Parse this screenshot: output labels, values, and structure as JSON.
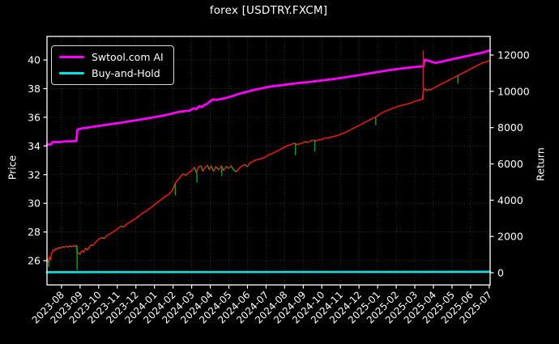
{
  "title": "forex [USDTRY.FXCM]",
  "axes": {
    "left_label": "Price",
    "right_label": "Return"
  },
  "legend": {
    "items": [
      {
        "label": "Swtool.com AI",
        "color": "#ff00ff"
      },
      {
        "label": "Buy-and-Hold",
        "color": "#00e6e6"
      }
    ]
  },
  "colors": {
    "background": "#000000",
    "text": "#ffffff",
    "spine": "#ffffff",
    "grid": "#3a3a3a",
    "price_up": "#e41a10",
    "price_down": "#15a315",
    "ai_line": "#ff00ff",
    "buyhold_line": "#00e6e6"
  },
  "chart_data": {
    "type": "line",
    "title": "forex [USDTRY.FXCM]",
    "x_tick_labels": [
      "2023-08",
      "2023-09",
      "2023-10",
      "2023-11",
      "2023-12",
      "2024-01",
      "2024-02",
      "2024-03",
      "2024-04",
      "2024-05",
      "2024-06",
      "2024-07",
      "2024-08",
      "2024-09",
      "2024-10",
      "2024-11",
      "2024-12",
      "2025-01",
      "2025-02",
      "2025-03",
      "2025-04",
      "2025-05",
      "2025-06",
      "2025-07"
    ],
    "x_range": [
      -0.78,
      23.05
    ],
    "left_axis": {
      "label": "Price",
      "ticks": [
        26,
        28,
        30,
        32,
        34,
        36,
        38,
        40
      ],
      "range": [
        24.31,
        41.64
      ]
    },
    "right_axis": {
      "label": "Return",
      "ticks": [
        0,
        2000,
        4000,
        6000,
        8000,
        10000,
        12000
      ],
      "range": [
        -669,
        13026
      ]
    },
    "grid": {
      "vertical": true,
      "horizontal": true,
      "style": "dotted"
    },
    "legend_position": "upper-left",
    "series": [
      {
        "name": "USDTRY price",
        "axis": "left",
        "style": "updown-segments",
        "up_color": "#e41a10",
        "down_color": "#15a315",
        "width": 1.6,
        "points": [
          [
            -0.78,
            26.1
          ],
          [
            -0.72,
            25.9
          ],
          [
            -0.66,
            26.25
          ],
          [
            -0.6,
            26.05
          ],
          [
            -0.52,
            26.55
          ],
          [
            -0.45,
            26.75
          ],
          [
            -0.38,
            26.7
          ],
          [
            -0.3,
            26.85
          ],
          [
            -0.22,
            26.8
          ],
          [
            -0.15,
            26.92
          ],
          [
            -0.05,
            26.88
          ],
          [
            0.05,
            26.97
          ],
          [
            0.15,
            26.93
          ],
          [
            0.25,
            27.0
          ],
          [
            0.35,
            26.96
          ],
          [
            0.45,
            27.02
          ],
          [
            0.55,
            26.98
          ],
          [
            0.65,
            27.04
          ],
          [
            0.75,
            27.0
          ],
          [
            0.82,
            27.06
          ],
          [
            0.84,
            26.5
          ],
          [
            0.9,
            26.55
          ],
          [
            1.0,
            26.45
          ],
          [
            1.1,
            26.7
          ],
          [
            1.2,
            26.6
          ],
          [
            1.3,
            26.85
          ],
          [
            1.4,
            26.75
          ],
          [
            1.5,
            26.95
          ],
          [
            1.6,
            27.1
          ],
          [
            1.7,
            27.05
          ],
          [
            1.8,
            27.25
          ],
          [
            1.9,
            27.35
          ],
          [
            2.0,
            27.5
          ],
          [
            2.15,
            27.6
          ],
          [
            2.3,
            27.55
          ],
          [
            2.45,
            27.75
          ],
          [
            2.6,
            27.85
          ],
          [
            2.75,
            28.0
          ],
          [
            2.9,
            28.1
          ],
          [
            3.05,
            28.25
          ],
          [
            3.2,
            28.4
          ],
          [
            3.35,
            28.35
          ],
          [
            3.5,
            28.55
          ],
          [
            3.65,
            28.65
          ],
          [
            3.8,
            28.8
          ],
          [
            3.95,
            28.9
          ],
          [
            4.1,
            29.05
          ],
          [
            4.25,
            29.2
          ],
          [
            4.4,
            29.35
          ],
          [
            4.55,
            29.45
          ],
          [
            4.7,
            29.6
          ],
          [
            4.85,
            29.75
          ],
          [
            5.0,
            29.9
          ],
          [
            5.15,
            30.05
          ],
          [
            5.3,
            30.2
          ],
          [
            5.45,
            30.35
          ],
          [
            5.6,
            30.5
          ],
          [
            5.75,
            30.6
          ],
          [
            5.9,
            30.8
          ],
          [
            6.0,
            31.0
          ],
          [
            6.1,
            31.35
          ],
          [
            6.2,
            31.55
          ],
          [
            6.3,
            31.7
          ],
          [
            6.42,
            31.9
          ],
          [
            6.55,
            32.05
          ],
          [
            6.68,
            31.95
          ],
          [
            6.8,
            32.1
          ],
          [
            6.92,
            32.2
          ],
          [
            7.05,
            32.35
          ],
          [
            7.15,
            32.5
          ],
          [
            7.25,
            32.15
          ],
          [
            7.38,
            32.55
          ],
          [
            7.5,
            32.6
          ],
          [
            7.6,
            32.25
          ],
          [
            7.72,
            32.5
          ],
          [
            7.85,
            32.65
          ],
          [
            7.95,
            32.35
          ],
          [
            8.05,
            32.6
          ],
          [
            8.18,
            32.25
          ],
          [
            8.3,
            32.55
          ],
          [
            8.45,
            32.35
          ],
          [
            8.6,
            32.6
          ],
          [
            8.72,
            32.3
          ],
          [
            8.85,
            32.55
          ],
          [
            9.0,
            32.45
          ],
          [
            9.12,
            32.6
          ],
          [
            9.25,
            32.35
          ],
          [
            9.4,
            32.2
          ],
          [
            9.55,
            32.45
          ],
          [
            9.7,
            32.6
          ],
          [
            9.85,
            32.7
          ],
          [
            10.0,
            32.55
          ],
          [
            10.12,
            32.8
          ],
          [
            10.25,
            32.9
          ],
          [
            10.4,
            33.0
          ],
          [
            10.55,
            33.05
          ],
          [
            10.7,
            33.1
          ],
          [
            10.85,
            33.15
          ],
          [
            11.0,
            33.25
          ],
          [
            11.15,
            33.4
          ],
          [
            11.3,
            33.45
          ],
          [
            11.45,
            33.55
          ],
          [
            11.6,
            33.65
          ],
          [
            11.75,
            33.75
          ],
          [
            11.9,
            33.85
          ],
          [
            12.05,
            33.95
          ],
          [
            12.2,
            34.05
          ],
          [
            12.35,
            34.1
          ],
          [
            12.5,
            34.2
          ],
          [
            12.65,
            34.1
          ],
          [
            12.8,
            34.15
          ],
          [
            12.95,
            34.2
          ],
          [
            13.1,
            34.3
          ],
          [
            13.25,
            34.25
          ],
          [
            13.4,
            34.35
          ],
          [
            13.55,
            34.4
          ],
          [
            13.7,
            34.35
          ],
          [
            13.85,
            34.45
          ],
          [
            14.0,
            34.45
          ],
          [
            14.15,
            34.55
          ],
          [
            14.3,
            34.55
          ],
          [
            14.45,
            34.6
          ],
          [
            14.6,
            34.65
          ],
          [
            14.75,
            34.7
          ],
          [
            14.9,
            34.75
          ],
          [
            15.05,
            34.85
          ],
          [
            15.2,
            34.9
          ],
          [
            15.35,
            35.0
          ],
          [
            15.5,
            35.1
          ],
          [
            15.65,
            35.2
          ],
          [
            15.8,
            35.3
          ],
          [
            15.95,
            35.4
          ],
          [
            16.1,
            35.5
          ],
          [
            16.25,
            35.6
          ],
          [
            16.4,
            35.7
          ],
          [
            16.55,
            35.8
          ],
          [
            16.7,
            35.9
          ],
          [
            16.85,
            36.0
          ],
          [
            17.0,
            36.1
          ],
          [
            17.15,
            36.25
          ],
          [
            17.3,
            36.35
          ],
          [
            17.45,
            36.45
          ],
          [
            17.6,
            36.5
          ],
          [
            17.75,
            36.6
          ],
          [
            17.9,
            36.65
          ],
          [
            18.05,
            36.75
          ],
          [
            18.2,
            36.8
          ],
          [
            18.35,
            36.85
          ],
          [
            18.5,
            36.9
          ],
          [
            18.65,
            36.95
          ],
          [
            18.8,
            37.0
          ],
          [
            18.95,
            37.1
          ],
          [
            19.1,
            37.15
          ],
          [
            19.25,
            37.2
          ],
          [
            19.4,
            37.25
          ],
          [
            19.48,
            37.9
          ],
          [
            19.55,
            38.0
          ],
          [
            19.65,
            37.85
          ],
          [
            19.75,
            37.95
          ],
          [
            19.85,
            37.9
          ],
          [
            19.95,
            38.0
          ],
          [
            20.1,
            38.1
          ],
          [
            20.25,
            38.2
          ],
          [
            20.4,
            38.3
          ],
          [
            20.55,
            38.4
          ],
          [
            20.7,
            38.5
          ],
          [
            20.85,
            38.6
          ],
          [
            21.0,
            38.7
          ],
          [
            21.15,
            38.8
          ],
          [
            21.3,
            38.9
          ],
          [
            21.45,
            39.0
          ],
          [
            21.6,
            39.1
          ],
          [
            21.75,
            39.2
          ],
          [
            21.9,
            39.3
          ],
          [
            22.05,
            39.4
          ],
          [
            22.2,
            39.5
          ],
          [
            22.35,
            39.6
          ],
          [
            22.5,
            39.7
          ],
          [
            22.65,
            39.8
          ],
          [
            22.8,
            39.85
          ],
          [
            23.0,
            39.95
          ]
        ]
      },
      {
        "name": "Swtool.com AI",
        "axis": "right",
        "style": "line",
        "color": "#ff00ff",
        "width": 2.8,
        "points": [
          [
            -0.78,
            7060
          ],
          [
            -0.55,
            7080
          ],
          [
            -0.5,
            7200
          ],
          [
            -0.3,
            7210
          ],
          [
            -0.1,
            7200
          ],
          [
            0.1,
            7230
          ],
          [
            0.35,
            7240
          ],
          [
            0.6,
            7250
          ],
          [
            0.8,
            7260
          ],
          [
            0.86,
            7890
          ],
          [
            1.0,
            7930
          ],
          [
            1.2,
            7970
          ],
          [
            1.5,
            8010
          ],
          [
            1.8,
            8060
          ],
          [
            2.1,
            8110
          ],
          [
            2.5,
            8170
          ],
          [
            2.9,
            8230
          ],
          [
            3.3,
            8290
          ],
          [
            3.7,
            8360
          ],
          [
            4.1,
            8420
          ],
          [
            4.5,
            8490
          ],
          [
            4.9,
            8560
          ],
          [
            5.3,
            8630
          ],
          [
            5.7,
            8710
          ],
          [
            6.0,
            8790
          ],
          [
            6.3,
            8860
          ],
          [
            6.6,
            8910
          ],
          [
            6.9,
            8940
          ],
          [
            7.1,
            9060
          ],
          [
            7.25,
            9020
          ],
          [
            7.4,
            9180
          ],
          [
            7.55,
            9130
          ],
          [
            7.7,
            9260
          ],
          [
            7.85,
            9320
          ],
          [
            8.0,
            9460
          ],
          [
            8.15,
            9550
          ],
          [
            8.35,
            9530
          ],
          [
            8.6,
            9580
          ],
          [
            8.9,
            9650
          ],
          [
            9.2,
            9740
          ],
          [
            9.5,
            9850
          ],
          [
            9.8,
            9930
          ],
          [
            10.1,
            10010
          ],
          [
            10.4,
            10090
          ],
          [
            10.7,
            10150
          ],
          [
            11.0,
            10220
          ],
          [
            11.3,
            10270
          ],
          [
            11.6,
            10310
          ],
          [
            12.0,
            10360
          ],
          [
            12.4,
            10410
          ],
          [
            12.8,
            10460
          ],
          [
            13.2,
            10500
          ],
          [
            13.6,
            10550
          ],
          [
            14.0,
            10600
          ],
          [
            14.4,
            10650
          ],
          [
            14.8,
            10700
          ],
          [
            15.2,
            10760
          ],
          [
            15.6,
            10830
          ],
          [
            16.0,
            10890
          ],
          [
            16.4,
            10960
          ],
          [
            16.8,
            11030
          ],
          [
            17.2,
            11100
          ],
          [
            17.6,
            11160
          ],
          [
            18.0,
            11220
          ],
          [
            18.4,
            11270
          ],
          [
            18.8,
            11320
          ],
          [
            19.1,
            11350
          ],
          [
            19.35,
            11370
          ],
          [
            19.46,
            11380
          ],
          [
            19.52,
            11730
          ],
          [
            19.7,
            11700
          ],
          [
            19.9,
            11630
          ],
          [
            20.1,
            11570
          ],
          [
            20.35,
            11610
          ],
          [
            20.6,
            11670
          ],
          [
            20.9,
            11740
          ],
          [
            21.2,
            11810
          ],
          [
            21.5,
            11880
          ],
          [
            21.8,
            11940
          ],
          [
            22.1,
            12010
          ],
          [
            22.4,
            12080
          ],
          [
            22.7,
            12150
          ],
          [
            23.05,
            12260
          ]
        ]
      },
      {
        "name": "Buy-and-Hold",
        "axis": "right",
        "style": "line",
        "color": "#00e6e6",
        "width": 2.6,
        "points": [
          [
            -0.78,
            30
          ],
          [
            23.05,
            54
          ]
        ]
      }
    ],
    "wicks": [
      {
        "x": -0.68,
        "from": 26.0,
        "to": 25.55,
        "dir": "down"
      },
      {
        "x": 0.84,
        "from": 27.0,
        "to": 25.35,
        "dir": "down"
      },
      {
        "x": 6.12,
        "from": 31.4,
        "to": 30.55,
        "dir": "down"
      },
      {
        "x": 7.28,
        "from": 32.2,
        "to": 31.45,
        "dir": "down"
      },
      {
        "x": 8.62,
        "from": 32.45,
        "to": 31.9,
        "dir": "down"
      },
      {
        "x": 12.58,
        "from": 34.15,
        "to": 33.35,
        "dir": "down"
      },
      {
        "x": 13.62,
        "from": 34.4,
        "to": 33.6,
        "dir": "down"
      },
      {
        "x": 16.9,
        "from": 36.0,
        "to": 35.45,
        "dir": "down"
      },
      {
        "x": 19.45,
        "from": 37.25,
        "to": 40.65,
        "dir": "up"
      },
      {
        "x": 21.32,
        "from": 38.9,
        "to": 38.35,
        "dir": "down"
      }
    ]
  }
}
